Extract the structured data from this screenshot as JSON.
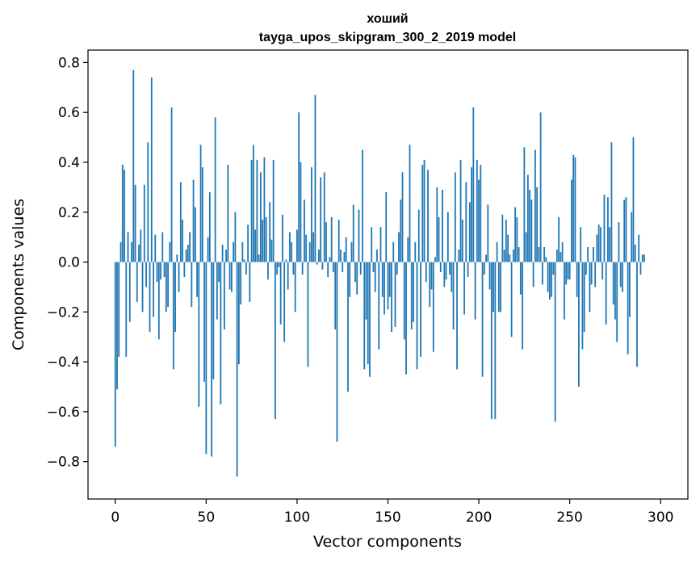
{
  "chart_data": {
    "type": "bar",
    "title": "хоший",
    "subtitle": "tayga_upos_skipgram_300_2_2019 model",
    "xlabel": "Vector components",
    "ylabel": "Components values",
    "xlim": [
      -15,
      315
    ],
    "ylim": [
      -0.95,
      0.85
    ],
    "xticks": [
      0,
      50,
      100,
      150,
      200,
      250,
      300
    ],
    "xtick_labels": [
      "0",
      "50",
      "100",
      "150",
      "200",
      "250",
      "300"
    ],
    "yticks": [
      0.8,
      0.6,
      0.4,
      0.2,
      0.0,
      -0.2,
      -0.4,
      -0.6,
      -0.8
    ],
    "ytick_labels": [
      "0.8",
      "0.6",
      "0.4",
      "0.2",
      "0.0",
      "−0.2",
      "−0.4",
      "−0.6",
      "−0.8"
    ],
    "bar_color": "#1f77b4",
    "grid": false,
    "values": [
      -0.74,
      -0.51,
      -0.38,
      0.08,
      0.39,
      0.37,
      -0.38,
      0.12,
      -0.24,
      0.08,
      0.77,
      0.31,
      -0.16,
      0.07,
      0.13,
      -0.2,
      0.31,
      -0.1,
      0.48,
      -0.28,
      0.74,
      -0.22,
      0.11,
      -0.08,
      -0.31,
      -0.07,
      0.12,
      -0.06,
      -0.2,
      -0.18,
      0.08,
      0.62,
      -0.43,
      -0.28,
      0.03,
      -0.12,
      0.32,
      0.17,
      -0.06,
      0.05,
      0.07,
      0.12,
      -0.18,
      0.33,
      0.22,
      -0.14,
      -0.58,
      0.47,
      0.38,
      -0.48,
      -0.77,
      0.1,
      0.28,
      -0.78,
      -0.47,
      0.58,
      -0.23,
      -0.08,
      -0.57,
      0.07,
      -0.27,
      0.05,
      0.39,
      -0.11,
      -0.12,
      0.08,
      0.2,
      -0.86,
      -0.41,
      -0.17,
      0.08,
      0.01,
      -0.05,
      0.15,
      -0.16,
      0.41,
      0.47,
      0.13,
      0.41,
      0.03,
      0.36,
      0.17,
      0.42,
      0.18,
      -0.07,
      0.24,
      0.09,
      0.41,
      -0.63,
      -0.05,
      -0.02,
      -0.25,
      0.19,
      -0.32,
      0.01,
      -0.11,
      0.12,
      0.08,
      -0.05,
      -0.2,
      0.13,
      0.6,
      0.4,
      -0.05,
      0.25,
      0.11,
      -0.42,
      0.08,
      0.38,
      0.12,
      0.67,
      -0.01,
      0.05,
      0.34,
      -0.03,
      0.36,
      0.16,
      -0.06,
      0.02,
      0.18,
      -0.04,
      -0.27,
      -0.72,
      0.17,
      0.05,
      -0.04,
      0.04,
      0.1,
      -0.52,
      -0.14,
      0.08,
      0.23,
      -0.08,
      -0.13,
      0.21,
      -0.05,
      0.45,
      -0.43,
      -0.23,
      -0.41,
      -0.46,
      0.14,
      -0.04,
      -0.12,
      0.05,
      -0.35,
      0.14,
      -0.14,
      -0.21,
      0.28,
      -0.19,
      -0.14,
      -0.28,
      0.08,
      -0.26,
      -0.05,
      0.12,
      0.25,
      0.36,
      -0.31,
      -0.45,
      0.1,
      0.47,
      -0.27,
      -0.24,
      0.08,
      -0.43,
      0.21,
      -0.38,
      0.39,
      0.41,
      -0.08,
      0.37,
      -0.18,
      -0.11,
      -0.36,
      0.02,
      0.3,
      0.18,
      -0.04,
      0.29,
      -0.1,
      -0.07,
      0.2,
      -0.05,
      -0.12,
      -0.27,
      0.36,
      -0.43,
      0.05,
      0.41,
      0.17,
      -0.21,
      0.32,
      -0.06,
      0.24,
      0.38,
      0.62,
      -0.23,
      0.41,
      0.33,
      0.39,
      -0.46,
      -0.05,
      0.03,
      0.23,
      -0.11,
      -0.63,
      -0.2,
      -0.63,
      0.08,
      -0.2,
      -0.2,
      0.19,
      0.05,
      0.17,
      0.11,
      0.03,
      -0.3,
      0.05,
      0.22,
      0.18,
      0.06,
      -0.13,
      -0.35,
      0.46,
      0.12,
      0.35,
      0.29,
      0.25,
      -0.1,
      0.45,
      0.3,
      0.06,
      0.6,
      -0.09,
      0.06,
      0.02,
      -0.12,
      -0.15,
      -0.14,
      -0.05,
      -0.64,
      0.05,
      0.18,
      0.04,
      0.08,
      -0.23,
      -0.09,
      -0.07,
      -0.07,
      0.33,
      0.43,
      0.42,
      -0.14,
      -0.5,
      0.14,
      -0.35,
      -0.28,
      -0.05,
      0.06,
      -0.2,
      -0.09,
      0.06,
      -0.1,
      0.11,
      0.15,
      0.14,
      -0.07,
      0.27,
      -0.25,
      0.26,
      0.14,
      0.48,
      -0.17,
      -0.23,
      -0.32,
      0.16,
      -0.1,
      -0.12,
      0.25,
      0.26,
      -0.37,
      -0.22,
      0.2,
      0.5,
      0.07,
      -0.42,
      0.11,
      -0.05,
      0.03,
      0.03
    ]
  }
}
